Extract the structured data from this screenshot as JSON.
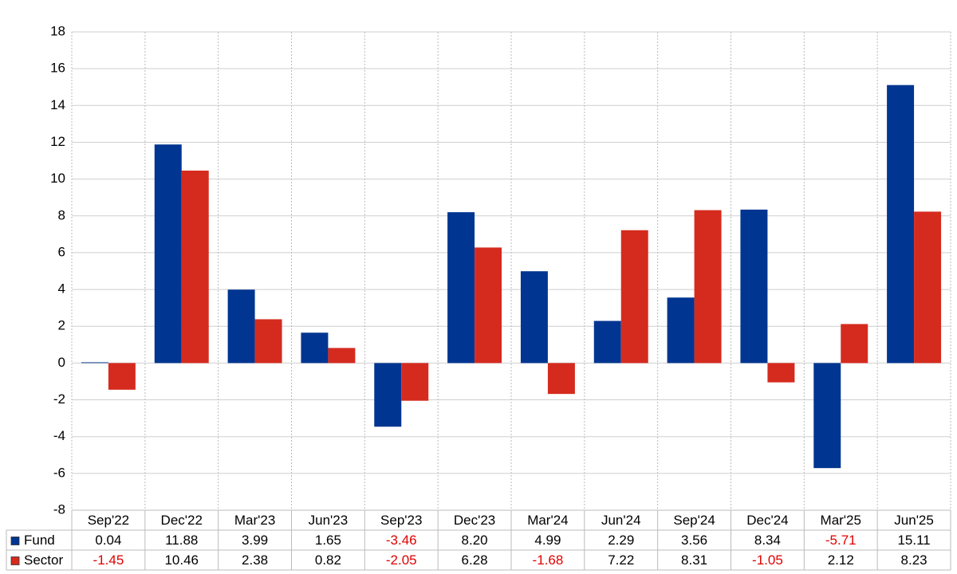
{
  "chart_data": {
    "type": "bar",
    "categories": [
      "Sep'22",
      "Dec'22",
      "Mar'23",
      "Jun'23",
      "Sep'23",
      "Dec'23",
      "Mar'24",
      "Jun'24",
      "Sep'24",
      "Dec'24",
      "Mar'25",
      "Jun'25"
    ],
    "series": [
      {
        "name": "Fund",
        "color": "#003591",
        "values": [
          0.04,
          11.88,
          3.99,
          1.65,
          -3.46,
          8.2,
          4.99,
          2.29,
          3.56,
          8.34,
          -5.71,
          15.11
        ],
        "value_labels": [
          "0.04",
          "11.88",
          "3.99",
          "1.65",
          "-3.46",
          "8.20",
          "4.99",
          "2.29",
          "3.56",
          "8.34",
          "-5.71",
          "15.11"
        ]
      },
      {
        "name": "Sector",
        "color": "#d52b1e",
        "values": [
          -1.45,
          10.46,
          2.38,
          0.82,
          -2.05,
          6.28,
          -1.68,
          7.22,
          8.31,
          -1.05,
          2.12,
          8.23
        ],
        "value_labels": [
          "-1.45",
          "10.46",
          "2.38",
          "0.82",
          "-2.05",
          "6.28",
          "-1.68",
          "7.22",
          "8.31",
          "-1.05",
          "2.12",
          "8.23"
        ]
      }
    ],
    "ylim": [
      -8,
      18
    ],
    "yticks": [
      -8,
      -6,
      -4,
      -2,
      0,
      2,
      4,
      6,
      8,
      10,
      12,
      14,
      16,
      18
    ],
    "grid": true
  }
}
